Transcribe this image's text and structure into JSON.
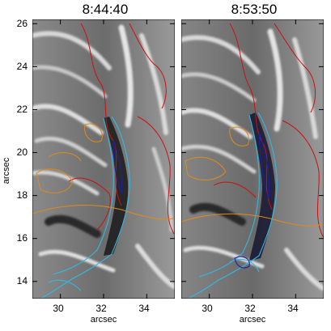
{
  "figure": {
    "panels": [
      {
        "title": "8:44:40"
      },
      {
        "title": "8:53:50"
      }
    ],
    "ylabel": "arcsec",
    "xlabel": "arcsec",
    "yticks": [
      "26",
      "24",
      "22",
      "20",
      "18",
      "16",
      "14"
    ],
    "xticks": [
      "30",
      "32",
      "34"
    ]
  },
  "chart_data": {
    "type": "image",
    "x_range": [
      28.7,
      35.3
    ],
    "y_range": [
      13.2,
      26.2
    ],
    "xticks": [
      30,
      32,
      34
    ],
    "yticks": [
      14,
      16,
      18,
      20,
      22,
      24,
      26
    ],
    "contour_colors": {
      "red": "#cc1010",
      "orange": "#e08a1a",
      "cyan": "#33b8e0",
      "blue": "#2020a0"
    }
  }
}
